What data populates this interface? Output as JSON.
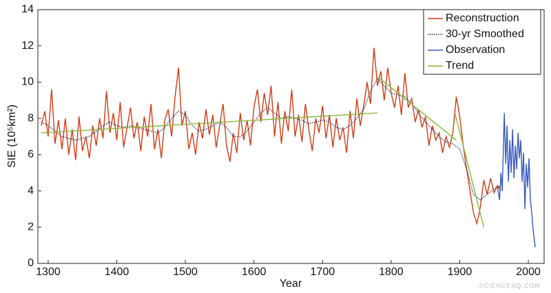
{
  "chart_data": {
    "type": "line",
    "xlabel": "Year",
    "ylabel": "SIE (10⁵km²)",
    "watermark": "SCIENCEAQ.COM",
    "xlim": [
      1285,
      2023
    ],
    "ylim": [
      0,
      14
    ],
    "xticks": [
      1300,
      1400,
      1500,
      1600,
      1700,
      1800,
      1900,
      2000
    ],
    "yticks": [
      0,
      2,
      4,
      6,
      8,
      10,
      12,
      14
    ],
    "legend": "upper right",
    "series": [
      {
        "name": "Reconstruction",
        "color": "#d03a12",
        "style": "solid",
        "x": [
          1290,
          1295,
          1300,
          1305,
          1310,
          1315,
          1320,
          1325,
          1330,
          1335,
          1340,
          1345,
          1350,
          1355,
          1360,
          1365,
          1370,
          1375,
          1380,
          1385,
          1390,
          1395,
          1400,
          1405,
          1410,
          1415,
          1420,
          1425,
          1430,
          1435,
          1440,
          1445,
          1450,
          1455,
          1460,
          1465,
          1470,
          1475,
          1480,
          1485,
          1490,
          1495,
          1500,
          1505,
          1510,
          1515,
          1520,
          1525,
          1530,
          1535,
          1540,
          1545,
          1550,
          1555,
          1560,
          1565,
          1570,
          1575,
          1580,
          1585,
          1590,
          1595,
          1600,
          1605,
          1610,
          1615,
          1620,
          1625,
          1630,
          1635,
          1640,
          1645,
          1650,
          1655,
          1660,
          1665,
          1670,
          1675,
          1680,
          1685,
          1690,
          1695,
          1700,
          1705,
          1710,
          1715,
          1720,
          1725,
          1730,
          1735,
          1740,
          1745,
          1750,
          1755,
          1760,
          1765,
          1770,
          1775,
          1780,
          1785,
          1790,
          1795,
          1800,
          1805,
          1810,
          1815,
          1820,
          1825,
          1830,
          1835,
          1840,
          1845,
          1850,
          1855,
          1860,
          1865,
          1870,
          1875,
          1880,
          1885,
          1890,
          1895,
          1900,
          1905,
          1910,
          1915,
          1920,
          1925,
          1930,
          1935,
          1940,
          1945,
          1950,
          1955,
          1960
        ],
        "values": [
          7.6,
          8.4,
          7.0,
          9.6,
          6.6,
          7.9,
          6.3,
          8.0,
          6.0,
          7.4,
          5.7,
          8.1,
          6.2,
          7.0,
          5.8,
          7.6,
          6.5,
          8.0,
          6.9,
          9.5,
          7.2,
          8.3,
          6.8,
          8.9,
          6.4,
          7.5,
          8.6,
          6.9,
          7.8,
          6.2,
          8.1,
          7.0,
          8.8,
          6.3,
          7.4,
          5.8,
          7.9,
          8.5,
          7.0,
          9.2,
          10.8,
          7.6,
          8.4,
          6.3,
          7.2,
          6.0,
          7.8,
          6.9,
          8.5,
          7.1,
          8.2,
          6.4,
          7.6,
          8.8,
          6.5,
          5.6,
          7.2,
          6.1,
          8.3,
          6.8,
          7.9,
          6.5,
          8.6,
          9.6,
          7.8,
          9.4,
          8.2,
          9.8,
          7.0,
          8.9,
          6.6,
          8.4,
          7.3,
          9.6,
          7.0,
          8.2,
          6.7,
          8.8,
          7.4,
          6.2,
          8.0,
          7.2,
          8.7,
          6.9,
          8.2,
          6.4,
          8.0,
          6.8,
          7.5,
          6.1,
          8.4,
          6.9,
          9.1,
          7.6,
          8.7,
          10.0,
          8.8,
          11.9,
          9.8,
          10.6,
          9.0,
          10.8,
          9.4,
          8.6,
          9.8,
          8.2,
          10.5,
          8.6,
          9.1,
          7.8,
          8.5,
          7.5,
          8.1,
          6.5,
          7.6,
          6.8,
          7.2,
          6.1,
          7.0,
          6.4,
          7.2,
          9.2,
          8.1,
          6.5,
          5.2,
          4.0,
          2.8,
          2.2,
          3.1,
          4.6,
          3.8,
          4.7,
          3.9,
          4.3,
          4.0
        ]
      },
      {
        "name": "30-yr Smoothed",
        "color": "#2a2a55",
        "style": "dotted",
        "x": [
          1290,
          1300,
          1310,
          1320,
          1330,
          1340,
          1350,
          1360,
          1370,
          1380,
          1390,
          1400,
          1410,
          1420,
          1430,
          1440,
          1450,
          1460,
          1470,
          1480,
          1490,
          1500,
          1510,
          1520,
          1530,
          1540,
          1550,
          1560,
          1570,
          1580,
          1590,
          1600,
          1610,
          1620,
          1630,
          1640,
          1650,
          1660,
          1670,
          1680,
          1690,
          1700,
          1710,
          1720,
          1730,
          1740,
          1750,
          1760,
          1770,
          1780,
          1790,
          1800,
          1810,
          1820,
          1830,
          1840,
          1850,
          1860,
          1870,
          1880,
          1890,
          1900,
          1910,
          1920,
          1930,
          1940,
          1950,
          1960
        ],
        "values": [
          7.8,
          7.6,
          7.3,
          7.0,
          6.9,
          6.8,
          6.9,
          7.0,
          7.3,
          7.6,
          7.8,
          7.6,
          7.5,
          7.6,
          7.5,
          7.4,
          7.3,
          7.2,
          7.5,
          8.0,
          8.4,
          8.2,
          7.6,
          7.3,
          7.4,
          7.6,
          7.8,
          7.5,
          7.0,
          7.0,
          7.3,
          7.8,
          8.3,
          8.6,
          8.3,
          8.0,
          8.1,
          8.0,
          7.9,
          7.7,
          7.8,
          7.9,
          7.8,
          7.5,
          7.4,
          7.6,
          8.0,
          8.5,
          9.5,
          10.2,
          9.8,
          9.4,
          9.3,
          9.2,
          8.8,
          8.3,
          7.8,
          7.4,
          7.0,
          6.7,
          6.6,
          6.3,
          5.2,
          3.8,
          3.5,
          3.8,
          4.1,
          4.3
        ]
      },
      {
        "name": "Observation",
        "color": "#3558c0",
        "style": "solid",
        "x": [
          1955,
          1958,
          1960,
          1962,
          1965,
          1967,
          1969,
          1971,
          1973,
          1975,
          1977,
          1979,
          1981,
          1983,
          1985,
          1987,
          1989,
          1991,
          1993,
          1995,
          1997,
          1999,
          2001,
          2003,
          2005,
          2007,
          2009,
          2010
        ],
        "values": [
          4.2,
          3.5,
          5.0,
          4.0,
          8.3,
          5.5,
          7.6,
          4.5,
          6.8,
          5.0,
          7.4,
          4.7,
          6.5,
          5.2,
          7.2,
          5.8,
          6.8,
          4.5,
          6.1,
          3.0,
          5.5,
          4.2,
          5.8,
          3.5,
          2.8,
          1.8,
          1.2,
          0.9
        ]
      },
      {
        "name": "Trend",
        "color": "#86b83a",
        "style": "solid",
        "x": [
          1290,
          1780,
          null,
          1780,
          1895,
          null,
          1893,
          1935
        ],
        "values": [
          7.2,
          8.3,
          null,
          10.3,
          6.8,
          null,
          8.3,
          2.0
        ]
      }
    ]
  }
}
